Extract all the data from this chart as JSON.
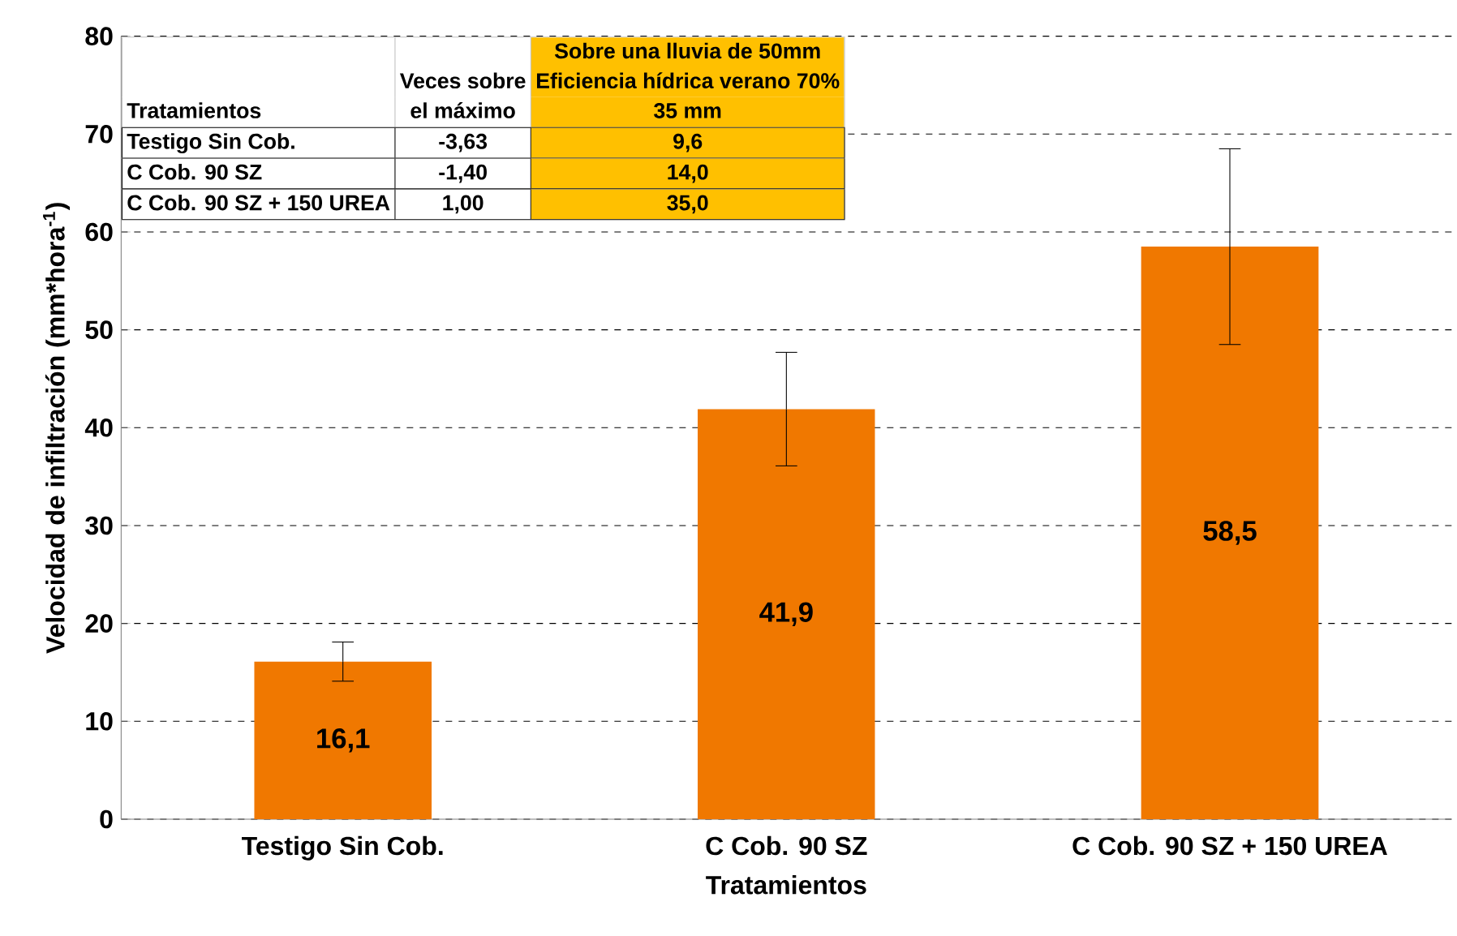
{
  "chart_data": {
    "type": "bar",
    "xlabel": "Tratamientos",
    "ylabel": "Velocidad de infiltración (mm*hora$^{-1}$)",
    "categories": [
      "Testigo Sin Cob.",
      "C Cob. 90 SZ",
      "C Cob. 90 SZ + 150 UREA"
    ],
    "values": [
      16.1,
      41.9,
      58.5
    ],
    "value_labels": [
      "16,1",
      "41,9",
      "58,5"
    ],
    "errors": [
      2,
      5.8,
      10
    ],
    "color": "#f07800",
    "ylim": [
      0,
      80
    ],
    "yticks": [
      0,
      10,
      20,
      30,
      40,
      50,
      60,
      70,
      80
    ],
    "grid": "y",
    "annotations": [
      "Sobre una lluvia de 50mm",
      "Eficiencia hídrica verano 70%",
      "Veces sobre",
      "el máximo",
      "Tratamientos",
      "35 mm",
      "Testigo Sin Cob.",
      "-3,63",
      "9,6",
      "C Cob. 90 SZ",
      "-1,40",
      "14,0",
      "C Cob. 90 SZ + 150 UREA",
      "1,00",
      "35,0"
    ]
  }
}
